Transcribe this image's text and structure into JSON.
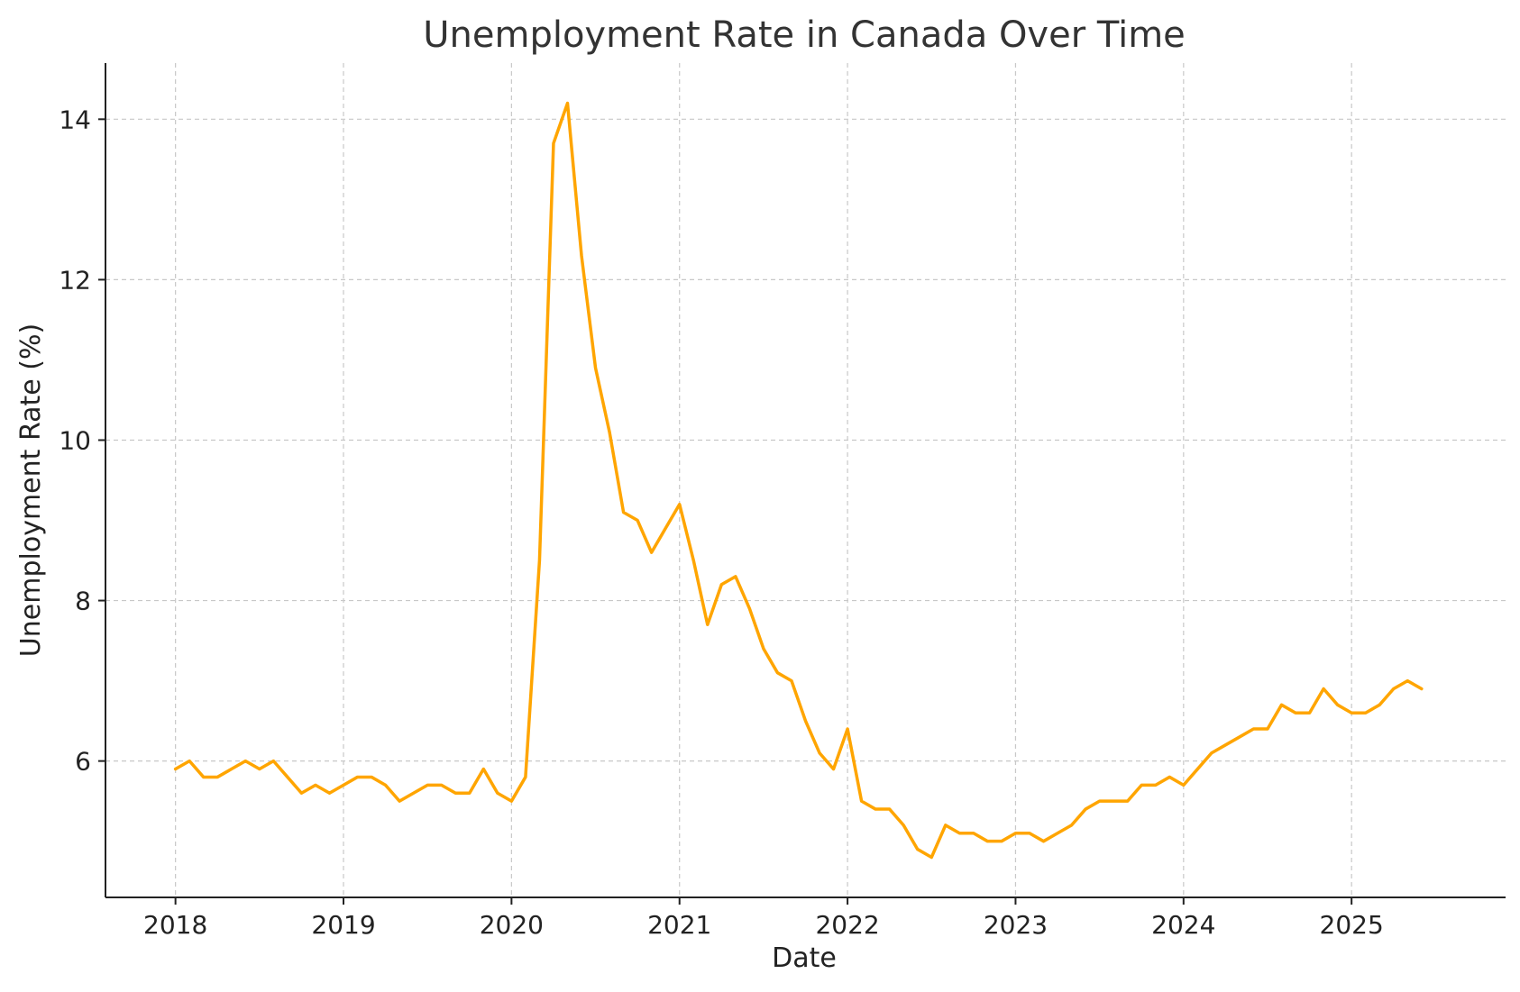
{
  "chart_data": {
    "type": "line",
    "title": "Unemployment Rate in Canada Over Time",
    "xlabel": "Date",
    "ylabel": "Unemployment Rate (%)",
    "x_ticks": [
      "2018",
      "2019",
      "2020",
      "2021",
      "2022",
      "2023",
      "2024",
      "2025"
    ],
    "y_ticks": [
      6,
      8,
      10,
      12,
      14
    ],
    "xlim": [
      "2017-08",
      "2025-12"
    ],
    "ylim": [
      4.3,
      14.7
    ],
    "grid": true,
    "series": [
      {
        "color": "#FFA500",
        "x": [
          "2018-01",
          "2018-02",
          "2018-03",
          "2018-04",
          "2018-05",
          "2018-06",
          "2018-07",
          "2018-08",
          "2018-09",
          "2018-10",
          "2018-11",
          "2018-12",
          "2019-01",
          "2019-02",
          "2019-03",
          "2019-04",
          "2019-05",
          "2019-06",
          "2019-07",
          "2019-08",
          "2019-09",
          "2019-10",
          "2019-11",
          "2019-12",
          "2020-01",
          "2020-02",
          "2020-03",
          "2020-04",
          "2020-05",
          "2020-06",
          "2020-07",
          "2020-08",
          "2020-09",
          "2020-10",
          "2020-11",
          "2020-12",
          "2021-01",
          "2021-02",
          "2021-03",
          "2021-04",
          "2021-05",
          "2021-06",
          "2021-07",
          "2021-08",
          "2021-09",
          "2021-10",
          "2021-11",
          "2021-12",
          "2022-01",
          "2022-02",
          "2022-03",
          "2022-04",
          "2022-05",
          "2022-06",
          "2022-07",
          "2022-08",
          "2022-09",
          "2022-10",
          "2022-11",
          "2022-12",
          "2023-01",
          "2023-02",
          "2023-03",
          "2023-04",
          "2023-05",
          "2023-06",
          "2023-07",
          "2023-08",
          "2023-09",
          "2023-10",
          "2023-11",
          "2023-12",
          "2024-01",
          "2024-02",
          "2024-03",
          "2024-04",
          "2024-05",
          "2024-06",
          "2024-07",
          "2024-08",
          "2024-09",
          "2024-10",
          "2024-11",
          "2024-12",
          "2025-01",
          "2025-02",
          "2025-03",
          "2025-04",
          "2025-05",
          "2025-06"
        ],
        "values": [
          5.9,
          6.0,
          5.8,
          5.8,
          5.9,
          6.0,
          5.9,
          6.0,
          5.8,
          5.6,
          5.7,
          5.6,
          5.7,
          5.8,
          5.8,
          5.7,
          5.5,
          5.6,
          5.7,
          5.7,
          5.6,
          5.6,
          5.9,
          5.6,
          5.5,
          5.8,
          8.5,
          13.7,
          14.2,
          12.3,
          10.9,
          10.1,
          9.1,
          9.0,
          8.6,
          8.9,
          9.2,
          8.5,
          7.7,
          8.2,
          8.3,
          7.9,
          7.4,
          7.1,
          7.0,
          6.5,
          6.1,
          5.9,
          6.4,
          5.5,
          5.4,
          5.4,
          5.2,
          4.9,
          4.8,
          5.2,
          5.1,
          5.1,
          5.0,
          5.0,
          5.1,
          5.1,
          5.0,
          5.1,
          5.2,
          5.4,
          5.5,
          5.5,
          5.5,
          5.7,
          5.7,
          5.8,
          5.7,
          5.9,
          6.1,
          6.2,
          6.3,
          6.4,
          6.4,
          6.7,
          6.6,
          6.6,
          6.9,
          6.7,
          6.6,
          6.6,
          6.7,
          6.9,
          7.0,
          6.9
        ]
      }
    ]
  }
}
